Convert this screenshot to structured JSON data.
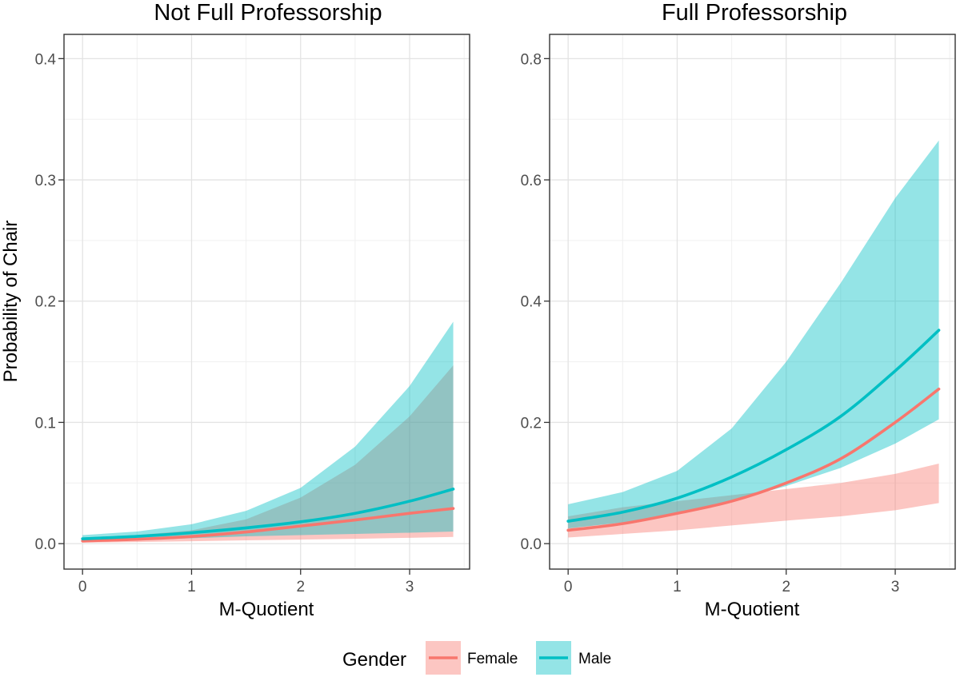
{
  "chart_data": [
    {
      "type": "line",
      "title": "Not Full Professorship",
      "xlabel": "M-Quotient",
      "ylabel": "Probability of Chair",
      "xlim": [
        -0.17,
        3.55
      ],
      "ylim": [
        -0.021,
        0.42
      ],
      "xticks": [
        0,
        1,
        2,
        3
      ],
      "xtick_labels": [
        "0",
        "1",
        "2",
        "3"
      ],
      "yticks": [
        0.0,
        0.1,
        0.2,
        0.3,
        0.4
      ],
      "ytick_labels": [
        "0.0",
        "0.1",
        "0.2",
        "0.3",
        "0.4"
      ],
      "grid": true,
      "x": [
        0,
        0.5,
        1,
        1.5,
        2,
        2.5,
        3,
        3.4
      ],
      "series": [
        {
          "name": "Female",
          "color": "#F8766D",
          "values": [
            0.0022,
            0.0036,
            0.0059,
            0.0096,
            0.0145,
            0.0195,
            0.025,
            0.029
          ],
          "lower": [
            0.0008,
            0.0013,
            0.002,
            0.0027,
            0.0033,
            0.004,
            0.0048,
            0.0055
          ],
          "upper": [
            0.005,
            0.007,
            0.011,
            0.02,
            0.038,
            0.065,
            0.105,
            0.147
          ]
        },
        {
          "name": "Male",
          "color": "#00BFC4",
          "values": [
            0.004,
            0.006,
            0.009,
            0.013,
            0.018,
            0.025,
            0.035,
            0.045
          ],
          "lower": [
            0.002,
            0.003,
            0.0045,
            0.006,
            0.007,
            0.008,
            0.009,
            0.01
          ],
          "upper": [
            0.007,
            0.01,
            0.016,
            0.027,
            0.046,
            0.08,
            0.13,
            0.183
          ]
        }
      ]
    },
    {
      "type": "line",
      "title": "Full Professorship",
      "xlabel": "M-Quotient",
      "ylabel": "",
      "xlim": [
        -0.17,
        3.55
      ],
      "ylim": [
        -0.042,
        0.84
      ],
      "xticks": [
        0,
        1,
        2,
        3
      ],
      "xtick_labels": [
        "0",
        "1",
        "2",
        "3"
      ],
      "yticks": [
        0.0,
        0.2,
        0.4,
        0.6,
        0.8
      ],
      "ytick_labels": [
        "0.0",
        "0.2",
        "0.4",
        "0.6",
        "0.8"
      ],
      "grid": true,
      "x": [
        0,
        0.5,
        1,
        1.5,
        2,
        2.5,
        3,
        3.4
      ],
      "series": [
        {
          "name": "Female",
          "color": "#F8766D",
          "values": [
            0.022,
            0.033,
            0.05,
            0.07,
            0.1,
            0.14,
            0.2,
            0.255
          ],
          "lower": [
            0.01,
            0.016,
            0.022,
            0.03,
            0.038,
            0.045,
            0.055,
            0.067
          ],
          "upper": [
            0.045,
            0.06,
            0.07,
            0.08,
            0.09,
            0.1,
            0.115,
            0.132
          ]
        },
        {
          "name": "Male",
          "color": "#00BFC4",
          "values": [
            0.037,
            0.052,
            0.075,
            0.11,
            0.155,
            0.21,
            0.285,
            0.352
          ],
          "lower": [
            0.025,
            0.035,
            0.05,
            0.07,
            0.095,
            0.125,
            0.165,
            0.205
          ],
          "upper": [
            0.065,
            0.085,
            0.12,
            0.19,
            0.3,
            0.43,
            0.57,
            0.665
          ]
        }
      ]
    }
  ],
  "legend": {
    "title": "Gender",
    "position": "bottom",
    "items": [
      {
        "label": "Female",
        "fill": "#F8766D",
        "line": "#F8766D"
      },
      {
        "label": "Male",
        "fill": "#00BFC4",
        "line": "#00BFC4"
      }
    ]
  }
}
